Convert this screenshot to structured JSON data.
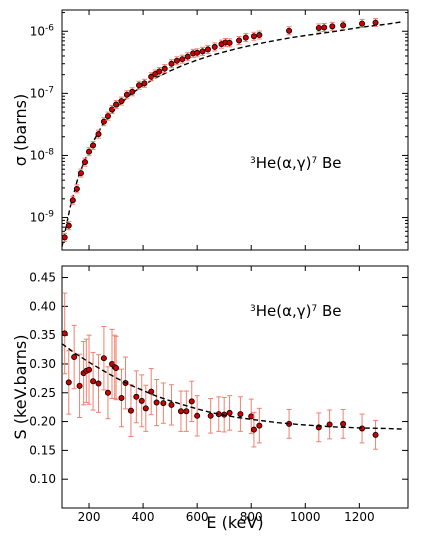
{
  "chart_data": [
    {
      "type": "scatter",
      "ylabel": "σ (barns)",
      "xlabel": "",
      "xlim": [
        100,
        1380
      ],
      "ylim": [
        3e-10,
        2.2e-06
      ],
      "yscale": "log",
      "y_ticks": [
        {
          "value": 1e-09,
          "label": "10",
          "exp": "-9"
        },
        {
          "value": 1e-08,
          "label": "10",
          "exp": "-8"
        },
        {
          "value": 1e-07,
          "label": "10",
          "exp": "-7"
        },
        {
          "value": 1e-06,
          "label": "10",
          "exp": "-6"
        }
      ],
      "x_ticks": [
        200,
        400,
        600,
        800,
        1000,
        1200
      ],
      "x_tick_labels_visible": false,
      "annotation": {
        "pre": "3",
        "main": "He(α,γ)",
        "post": "7",
        "tail": " Be"
      },
      "series": [
        {
          "marker": "circle",
          "x": [
            110,
            125,
            140,
            155,
            170,
            185,
            200,
            215,
            235,
            255,
            270,
            285,
            300,
            320,
            340,
            360,
            385,
            405,
            430,
            445,
            460,
            480,
            505,
            525,
            545,
            565,
            585,
            600,
            620,
            640,
            665,
            690,
            705,
            720,
            755,
            780,
            810,
            830,
            940,
            1050,
            1070,
            1100,
            1140,
            1210,
            1260
          ],
          "y": [
            4.8e-10,
            7.4e-10,
            1.9e-09,
            2.9e-09,
            5.2e-09,
            7.8e-09,
            1.15e-08,
            1.45e-08,
            2.2e-08,
            3.5e-08,
            4.3e-08,
            5.5e-08,
            6.6e-08,
            7.5e-08,
            9.5e-08,
            1.06e-07,
            1.35e-07,
            1.45e-07,
            1.85e-07,
            2.05e-07,
            2.25e-07,
            2.5e-07,
            3e-07,
            3.35e-07,
            3.55e-07,
            3.9e-07,
            4.4e-07,
            4.5e-07,
            4.75e-07,
            5.1e-07,
            5.6e-07,
            6.2e-07,
            6.6e-07,
            6.5e-07,
            7.1e-07,
            7.9e-07,
            8.3e-07,
            8.7e-07,
            1.02e-06,
            1.13e-06,
            1.15e-06,
            1.2e-06,
            1.25e-06,
            1.33e-06,
            1.38e-06
          ],
          "err_frac": 0.16
        },
        {
          "style": "dashed",
          "x": [
            100,
            130,
            160,
            200,
            250,
            300,
            350,
            400,
            450,
            500,
            550,
            600,
            650,
            700,
            750,
            800,
            850,
            900,
            950,
            1000,
            1100,
            1200,
            1300,
            1360
          ],
          "y": [
            3.4e-10,
            1.45e-09,
            4.5e-09,
            1.25e-08,
            3.1e-08,
            5.8e-08,
            9.3e-08,
            1.35e-07,
            1.8e-07,
            2.3e-07,
            2.85e-07,
            3.45e-07,
            4.05e-07,
            4.65e-07,
            5.3e-07,
            5.95e-07,
            6.6e-07,
            7.25e-07,
            7.9e-07,
            8.55e-07,
            9.8e-07,
            1.15e-06,
            1.3e-06,
            1.42e-06
          ]
        }
      ]
    },
    {
      "type": "scatter",
      "ylabel": "S (keV.barns)",
      "xlabel": "E (keV)",
      "xlim": [
        100,
        1380
      ],
      "ylim": [
        0.05,
        0.47
      ],
      "y_ticks": [
        0.1,
        0.15,
        0.2,
        0.25,
        0.3,
        0.35,
        0.4,
        0.45
      ],
      "y_tick_labels": [
        "0.10",
        "0.15",
        "0.20",
        "0.25",
        "0.30",
        "0.35",
        "0.40",
        "0.45"
      ],
      "x_ticks": [
        200,
        400,
        600,
        800,
        1000,
        1200
      ],
      "x_tick_labels": [
        "200",
        "400",
        "600",
        "800",
        "1000",
        "1200"
      ],
      "annotation": {
        "pre": "3",
        "main": "He(α,γ)",
        "post": "7",
        "tail": " Be"
      },
      "series": [
        {
          "marker": "circle",
          "x": [
            110,
            125,
            145,
            165,
            180,
            190,
            200,
            215,
            235,
            255,
            270,
            285,
            295,
            300,
            320,
            335,
            355,
            375,
            395,
            410,
            430,
            450,
            475,
            505,
            540,
            560,
            580,
            600,
            650,
            680,
            700,
            720,
            760,
            800,
            810,
            830,
            940,
            1050,
            1090,
            1140,
            1210,
            1260
          ],
          "y": [
            0.353,
            0.268,
            0.312,
            0.262,
            0.284,
            0.288,
            0.29,
            0.27,
            0.266,
            0.31,
            0.25,
            0.3,
            0.295,
            0.293,
            0.241,
            0.267,
            0.219,
            0.243,
            0.236,
            0.223,
            0.252,
            0.233,
            0.232,
            0.229,
            0.218,
            0.218,
            0.235,
            0.21,
            0.21,
            0.213,
            0.212,
            0.215,
            0.213,
            0.209,
            0.186,
            0.193,
            0.196,
            0.19,
            0.195,
            0.196,
            0.188,
            0.177
          ],
          "err": [
            0.07,
            0.055,
            0.055,
            0.055,
            0.055,
            0.055,
            0.06,
            0.05,
            0.05,
            0.055,
            0.045,
            0.06,
            0.055,
            0.055,
            0.05,
            0.045,
            0.045,
            0.045,
            0.045,
            0.04,
            0.04,
            0.04,
            0.035,
            0.035,
            0.035,
            0.035,
            0.035,
            0.035,
            0.03,
            0.03,
            0.03,
            0.03,
            0.03,
            0.03,
            0.03,
            0.03,
            0.025,
            0.025,
            0.025,
            0.025,
            0.025,
            0.025
          ]
        },
        {
          "style": "dashed",
          "x": [
            100,
            150,
            200,
            250,
            300,
            350,
            400,
            450,
            500,
            550,
            600,
            650,
            700,
            750,
            800,
            850,
            900,
            950,
            1000,
            1100,
            1200,
            1300,
            1360
          ],
          "y": [
            0.335,
            0.318,
            0.303,
            0.289,
            0.276,
            0.264,
            0.254,
            0.244,
            0.236,
            0.229,
            0.222,
            0.216,
            0.211,
            0.207,
            0.204,
            0.201,
            0.198,
            0.196,
            0.194,
            0.191,
            0.189,
            0.188,
            0.187
          ]
        }
      ]
    }
  ]
}
